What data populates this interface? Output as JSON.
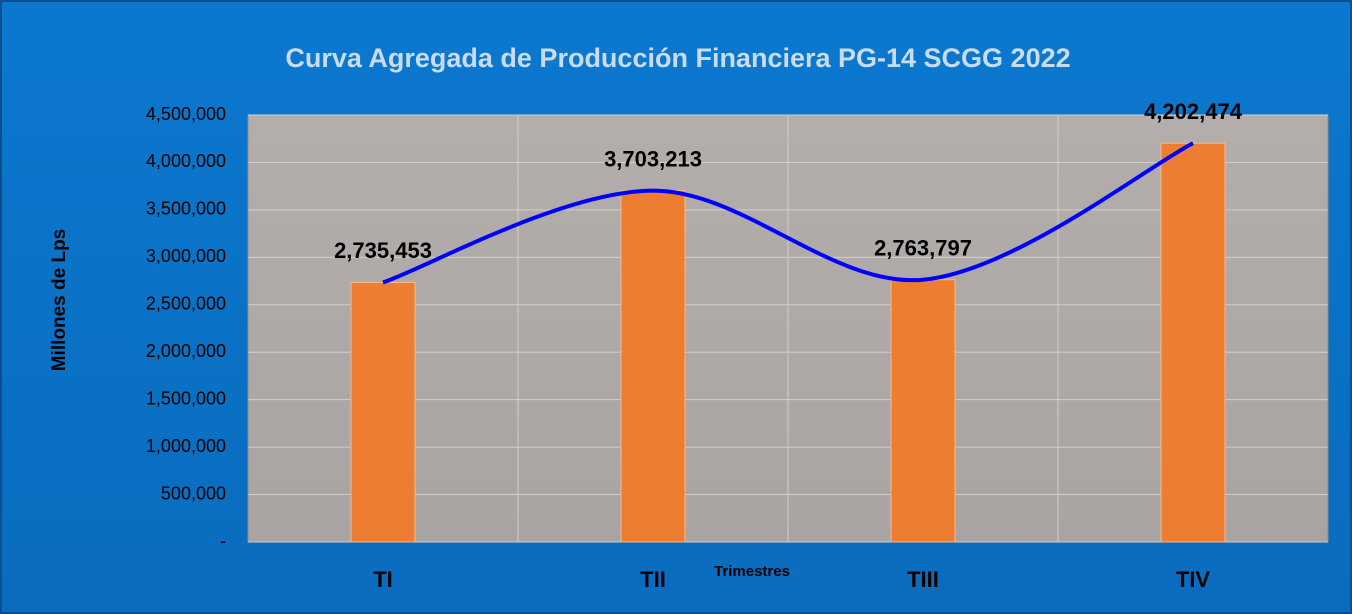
{
  "chart_data": {
    "type": "bar",
    "title": "Curva Agregada de Producción Financiera PG-14 SCGG 2022",
    "y_label": "Millones de Lps",
    "x_label": "Trimestres",
    "categories": [
      "TI",
      "TII",
      "TIII",
      "TIV"
    ],
    "values": [
      2735453,
      3703213,
      2763797,
      4202474
    ],
    "value_labels": [
      "2,735,453",
      "3,703,213",
      "2,763,797",
      "4,202,474"
    ],
    "color": "#ed7d31",
    "line_color": "#0000ff",
    "ylim": [
      0,
      4500000
    ],
    "yticks": [
      {
        "value": 0,
        "label": "-"
      },
      {
        "value": 500000,
        "label": "500,000"
      },
      {
        "value": 1000000,
        "label": "1,000,000"
      },
      {
        "value": 1500000,
        "label": "1,500,000"
      },
      {
        "value": 2000000,
        "label": "2,000,000"
      },
      {
        "value": 2500000,
        "label": "2,500,000"
      },
      {
        "value": 3000000,
        "label": "3,000,000"
      },
      {
        "value": 3500000,
        "label": "3,500,000"
      },
      {
        "value": 4000000,
        "label": "4,000,000"
      },
      {
        "value": 4500000,
        "label": "4,500,000"
      }
    ],
    "grid": true
  }
}
